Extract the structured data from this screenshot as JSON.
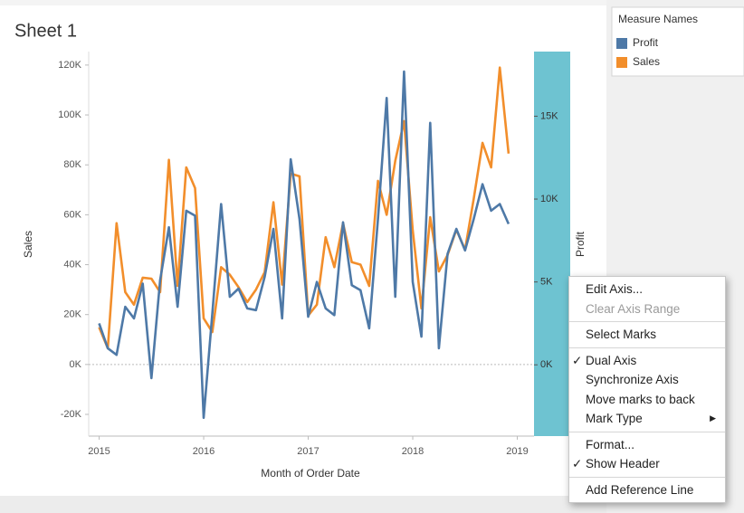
{
  "chart_data": {
    "type": "line",
    "title": "Sheet 1",
    "legend_title": "Measure Names",
    "x_label": "Month of Order Date",
    "y_label": "Sales",
    "y2_label": "Profit",
    "x": [
      2015,
      2015.083,
      2015.167,
      2015.25,
      2015.333,
      2015.417,
      2015.5,
      2015.583,
      2015.667,
      2015.75,
      2015.833,
      2015.917,
      2016,
      2016.083,
      2016.167,
      2016.25,
      2016.333,
      2016.417,
      2016.5,
      2016.583,
      2016.667,
      2016.75,
      2016.833,
      2016.917,
      2017,
      2017.083,
      2017.167,
      2017.25,
      2017.333,
      2017.417,
      2017.5,
      2017.583,
      2017.667,
      2017.75,
      2017.833,
      2017.917,
      2018,
      2018.083,
      2018.167,
      2018.25,
      2018.333,
      2018.417,
      2018.5,
      2018.583,
      2018.667,
      2018.75,
      2018.833,
      2018.917
    ],
    "xlim": [
      2014.9,
      2019.16
    ],
    "xticks": [
      2015,
      2016,
      2017,
      2018,
      2019
    ],
    "ylim": [
      -28700,
      125400
    ],
    "yticks": [
      {
        "value": -20000,
        "label": "-20K"
      },
      {
        "value": 0,
        "label": "0K"
      },
      {
        "value": 20000,
        "label": "20K"
      },
      {
        "value": 40000,
        "label": "40K"
      },
      {
        "value": 60000,
        "label": "60K"
      },
      {
        "value": 80000,
        "label": "80K"
      },
      {
        "value": 100000,
        "label": "100K"
      },
      {
        "value": 120000,
        "label": "120K"
      }
    ],
    "y2lim": [
      -4300,
      18900
    ],
    "y2ticks": [
      {
        "value": 0,
        "label": "0K"
      },
      {
        "value": 5000,
        "label": "5K"
      },
      {
        "value": 10000,
        "label": "10K"
      },
      {
        "value": 15000,
        "label": "15K"
      }
    ],
    "series": [
      {
        "name": "Profit",
        "color": "#4e79a7",
        "axis": "y2",
        "values": [
          2500,
          1000,
          600,
          3500,
          2800,
          4900,
          -800,
          5100,
          8300,
          3500,
          9300,
          9000,
          -3200,
          3100,
          9700,
          4100,
          4600,
          3400,
          3300,
          5300,
          8200,
          2800,
          12400,
          8800,
          2900,
          5000,
          3400,
          3000,
          8600,
          4800,
          4500,
          2200,
          8800,
          16100,
          4100,
          17700,
          5000,
          1700,
          14600,
          1000,
          6700,
          8200,
          6900,
          8800,
          10900,
          9300,
          9700,
          8500
        ]
      },
      {
        "name": "Sales",
        "color": "#f28e2b",
        "values": [
          14900,
          6500,
          56600,
          29000,
          24000,
          34800,
          34400,
          29000,
          82000,
          31500,
          79000,
          70700,
          18500,
          13000,
          39000,
          36000,
          31000,
          25000,
          30000,
          37000,
          65000,
          32000,
          76500,
          75400,
          19600,
          24000,
          51000,
          39000,
          56600,
          41000,
          40000,
          31500,
          73600,
          60000,
          81600,
          97500,
          53700,
          22500,
          59000,
          37300,
          43900,
          54000,
          46000,
          66400,
          88800,
          79000,
          119000,
          84500
        ]
      }
    ]
  },
  "context_menu": {
    "items": [
      {
        "label": "Edit Axis..."
      },
      {
        "label": "Clear Axis Range",
        "disabled": true
      },
      {
        "label": "Select Marks",
        "separator_before": true
      },
      {
        "label": "Dual Axis",
        "checked": true,
        "separator_before": true
      },
      {
        "label": "Synchronize Axis"
      },
      {
        "label": "Move marks to back"
      },
      {
        "label": "Mark Type",
        "submenu": true
      },
      {
        "label": "Format...",
        "separator_before": true
      },
      {
        "label": "Show Header",
        "checked": true
      },
      {
        "label": "Add Reference Line",
        "separator_before": true
      }
    ]
  }
}
